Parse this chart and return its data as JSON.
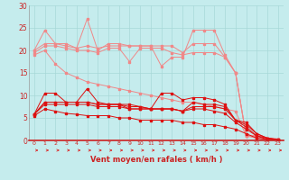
{
  "xlabel": "Vent moyen/en rafales ( km/h )",
  "xlim": [
    -0.5,
    23.5
  ],
  "ylim": [
    0,
    30
  ],
  "xticks": [
    0,
    1,
    2,
    3,
    4,
    5,
    6,
    7,
    8,
    9,
    10,
    11,
    12,
    13,
    14,
    15,
    16,
    17,
    18,
    19,
    20,
    21,
    22,
    23
  ],
  "yticks": [
    0,
    5,
    10,
    15,
    20,
    25,
    30
  ],
  "bg_color": "#c5eced",
  "grid_color": "#a8d8d8",
  "line_color_light": "#f08888",
  "line_color_dark": "#dd1111",
  "series_light": [
    [
      20.0,
      24.5,
      21.5,
      21.0,
      20.5,
      27.0,
      20.0,
      21.5,
      21.5,
      21.0,
      21.0,
      21.0,
      16.5,
      18.5,
      18.5,
      24.5,
      24.5,
      24.5,
      19.0,
      15.0,
      1.0,
      1.0,
      0.5,
      0.3
    ],
    [
      20.0,
      21.5,
      21.5,
      21.5,
      20.5,
      21.0,
      20.5,
      21.0,
      21.0,
      21.0,
      21.0,
      21.0,
      21.0,
      21.0,
      19.5,
      21.5,
      21.5,
      21.5,
      18.5,
      15.0,
      1.0,
      1.0,
      0.5,
      0.3
    ],
    [
      19.5,
      21.0,
      21.0,
      20.5,
      20.0,
      20.0,
      19.5,
      20.5,
      20.5,
      17.5,
      20.5,
      20.5,
      20.5,
      19.5,
      19.0,
      19.5,
      19.5,
      19.5,
      18.5,
      15.0,
      1.0,
      1.0,
      0.5,
      0.3
    ],
    [
      19.0,
      20.0,
      17.0,
      15.0,
      14.0,
      13.0,
      12.5,
      12.0,
      11.5,
      11.0,
      10.5,
      10.0,
      9.5,
      9.0,
      8.5,
      8.5,
      8.0,
      7.5,
      7.0,
      6.5,
      1.0,
      0.5,
      0.3,
      0.2
    ]
  ],
  "series_dark": [
    [
      5.8,
      10.5,
      10.5,
      8.5,
      8.5,
      11.5,
      8.5,
      8.0,
      8.0,
      8.0,
      7.5,
      7.0,
      10.5,
      10.5,
      9.0,
      9.5,
      9.5,
      9.0,
      8.0,
      4.5,
      4.0,
      1.5,
      0.5,
      0.2
    ],
    [
      5.8,
      8.5,
      8.5,
      8.5,
      8.5,
      8.5,
      8.0,
      8.0,
      8.0,
      7.5,
      7.5,
      7.0,
      7.0,
      7.0,
      6.5,
      8.5,
      8.0,
      8.0,
      7.5,
      4.5,
      3.5,
      1.5,
      0.5,
      0.2
    ],
    [
      5.8,
      8.5,
      8.5,
      8.5,
      8.5,
      8.5,
      8.0,
      8.0,
      8.0,
      7.0,
      7.0,
      7.0,
      7.0,
      7.0,
      6.5,
      7.5,
      7.5,
      7.5,
      7.0,
      4.5,
      3.0,
      1.0,
      0.5,
      0.1
    ],
    [
      5.8,
      8.0,
      8.0,
      8.0,
      8.0,
      8.0,
      7.5,
      7.5,
      7.5,
      7.0,
      7.0,
      7.0,
      7.0,
      7.0,
      6.5,
      7.0,
      7.0,
      6.5,
      6.0,
      4.0,
      2.5,
      1.0,
      0.2,
      0.1
    ],
    [
      5.5,
      7.0,
      6.5,
      6.0,
      5.8,
      5.5,
      5.5,
      5.5,
      5.0,
      5.0,
      4.5,
      4.5,
      4.5,
      4.5,
      4.0,
      4.0,
      3.5,
      3.5,
      3.0,
      2.5,
      1.5,
      0.5,
      0.2,
      0.0
    ]
  ],
  "arrow_color": "#dd1111"
}
